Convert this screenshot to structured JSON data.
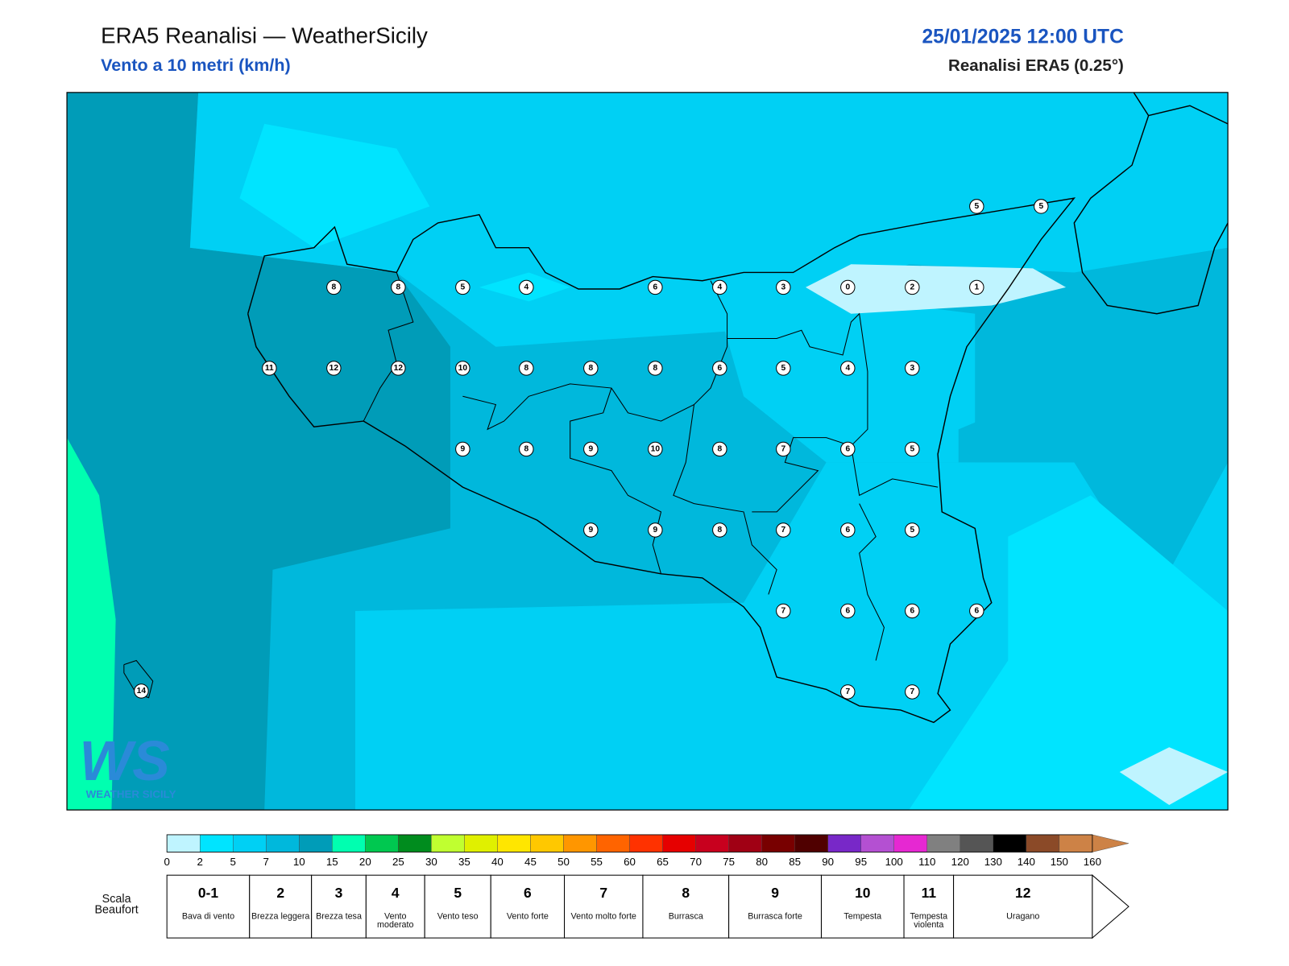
{
  "header": {
    "title": "ERA5 Reanalisi — WeatherSicily",
    "subtitle": "Vento a 10 metri (km/h)",
    "datetime": "25/01/2025 12:00 UTC",
    "source": "Reanalisi ERA5 (0.25°)"
  },
  "logo": {
    "letters": "WS",
    "text": "WEATHER SICILY"
  },
  "wind_stations": [
    5,
    5,
    8,
    8,
    5,
    4,
    6,
    4,
    3,
    0,
    2,
    1,
    11,
    12,
    12,
    10,
    8,
    8,
    8,
    6,
    5,
    4,
    3,
    9,
    8,
    9,
    10,
    8,
    7,
    6,
    5,
    9,
    9,
    8,
    7,
    6,
    5,
    7,
    6,
    6,
    6,
    7,
    7,
    14
  ],
  "colorbar": {
    "ticks": [
      0,
      2,
      5,
      7,
      10,
      15,
      20,
      25,
      30,
      35,
      40,
      45,
      50,
      55,
      60,
      65,
      70,
      75,
      80,
      85,
      90,
      95,
      100,
      110,
      120,
      130,
      140,
      150,
      160
    ],
    "colors": [
      "#bff4ff",
      "#00e4ff",
      "#00d0f4",
      "#00b8dc",
      "#009cb8",
      "#00ffb0",
      "#00c850",
      "#008c1e",
      "#c0ff30",
      "#e0f000",
      "#ffe600",
      "#ffc800",
      "#ff9600",
      "#ff6400",
      "#ff3200",
      "#e60000",
      "#c8001e",
      "#a00014",
      "#780000",
      "#500000",
      "#7828c8",
      "#b450d2",
      "#e628d2",
      "#808080",
      "#555555",
      "#000000",
      "#8b4a28",
      "#cd8246"
    ]
  },
  "beaufort": {
    "label": "Scala Beaufort",
    "levels": [
      {
        "force": "0-1",
        "description": "Bava di vento"
      },
      {
        "force": "2",
        "description": "Brezza leggera"
      },
      {
        "force": "3",
        "description": "Brezza tesa"
      },
      {
        "force": "4",
        "description": "Vento moderato"
      },
      {
        "force": "5",
        "description": "Vento teso"
      },
      {
        "force": "6",
        "description": "Vento forte"
      },
      {
        "force": "7",
        "description": "Vento molto forte"
      },
      {
        "force": "8",
        "description": "Burrasca"
      },
      {
        "force": "9",
        "description": "Burrasca forte"
      },
      {
        "force": "10",
        "description": "Tempesta"
      },
      {
        "force": "11",
        "description": "Tempesta violenta"
      },
      {
        "force": "12",
        "description": "Uragano"
      }
    ]
  }
}
